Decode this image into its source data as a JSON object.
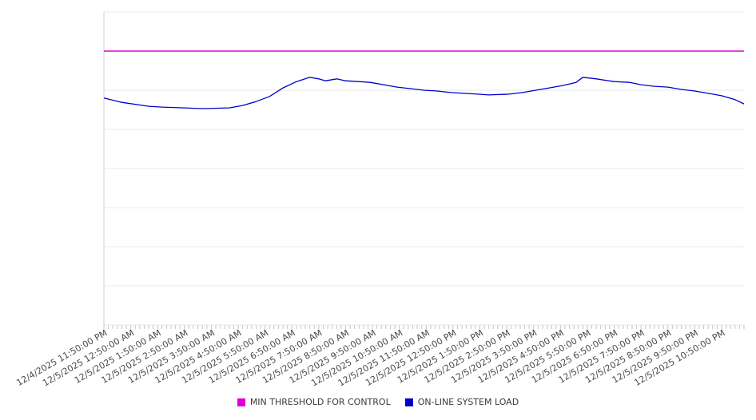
{
  "chart_data": {
    "type": "line",
    "title": "",
    "x_axis": {
      "labels": [
        "12/4/2025 11:50:00 PM",
        "12/5/2025 12:50:00 AM",
        "12/5/2025 1:50:00 AM",
        "12/5/2025 2:50:00 AM",
        "12/5/2025 3:50:00 AM",
        "12/5/2025 4:50:00 AM",
        "12/5/2025 5:50:00 AM",
        "12/5/2025 6:50:00 AM",
        "12/5/2025 7:50:00 AM",
        "12/5/2025 8:50:00 AM",
        "12/5/2025 9:50:00 AM",
        "12/5/2025 10:50:00 AM",
        "12/5/2025 11:50:00 AM",
        "12/5/2025 12:50:00 PM",
        "12/5/2025 1:50:00 PM",
        "12/5/2025 2:50:00 PM",
        "12/5/2025 3:50:00 PM",
        "12/5/2025 4:50:00 PM",
        "12/5/2025 5:50:00 PM",
        "12/5/2025 6:50:00 PM",
        "12/5/2025 7:50:00 PM",
        "12/5/2025 8:50:00 PM",
        "12/5/2025 9:50:00 PM",
        "12/5/2025 10:50:00 PM"
      ],
      "label_interval_minutes": 60,
      "minutes_per_minor_tick": 10,
      "minor_tick_count": 144,
      "total_minutes": 1430,
      "label_rotation_deg": -30
    },
    "y_axis": {
      "labels_visible": false,
      "min": 0,
      "max": 8,
      "gridline_count": 9,
      "grid_on": true
    },
    "series": [
      {
        "name": "MIN THRESHOLD FOR CONTROL",
        "type": "threshold",
        "color": "#DD00DD",
        "value": 7.0
      },
      {
        "name": "ON-LINE SYSTEM LOAD",
        "type": "line",
        "color": "#0000CC",
        "points_format": "[minutes_from_start, value_in_grid_units]",
        "points": [
          [
            0,
            5.8
          ],
          [
            40,
            5.69
          ],
          [
            100,
            5.59
          ],
          [
            130,
            5.57
          ],
          [
            180,
            5.55
          ],
          [
            220,
            5.53
          ],
          [
            280,
            5.55
          ],
          [
            310,
            5.61
          ],
          [
            340,
            5.71
          ],
          [
            370,
            5.84
          ],
          [
            400,
            6.06
          ],
          [
            430,
            6.22
          ],
          [
            460,
            6.33
          ],
          [
            480,
            6.29
          ],
          [
            495,
            6.24
          ],
          [
            520,
            6.29
          ],
          [
            540,
            6.24
          ],
          [
            570,
            6.22
          ],
          [
            595,
            6.2
          ],
          [
            625,
            6.14
          ],
          [
            655,
            6.08
          ],
          [
            685,
            6.04
          ],
          [
            715,
            6.0
          ],
          [
            745,
            5.98
          ],
          [
            775,
            5.94
          ],
          [
            805,
            5.92
          ],
          [
            835,
            5.9
          ],
          [
            860,
            5.88
          ],
          [
            905,
            5.9
          ],
          [
            935,
            5.94
          ],
          [
            965,
            6.0
          ],
          [
            995,
            6.06
          ],
          [
            1025,
            6.12
          ],
          [
            1055,
            6.2
          ],
          [
            1070,
            6.33
          ],
          [
            1100,
            6.29
          ],
          [
            1140,
            6.22
          ],
          [
            1175,
            6.2
          ],
          [
            1200,
            6.14
          ],
          [
            1230,
            6.1
          ],
          [
            1260,
            6.08
          ],
          [
            1290,
            6.02
          ],
          [
            1320,
            5.98
          ],
          [
            1350,
            5.92
          ],
          [
            1380,
            5.86
          ],
          [
            1410,
            5.76
          ],
          [
            1430,
            5.65
          ]
        ]
      }
    ],
    "legend": {
      "position": "bottom",
      "items": [
        {
          "label": "MIN THRESHOLD FOR CONTROL",
          "color": "#DD00DD"
        },
        {
          "label": "ON-LINE SYSTEM LOAD",
          "color": "#0000CC"
        }
      ]
    }
  },
  "colors": {
    "background": "#FFFFFF",
    "gridline": "#E9E9E9",
    "axis_border": "#CFCFCF",
    "minor_tick": "#C6C6C6",
    "tick_label": "#4A4A4A",
    "legend_text": "#3A3A3A"
  }
}
